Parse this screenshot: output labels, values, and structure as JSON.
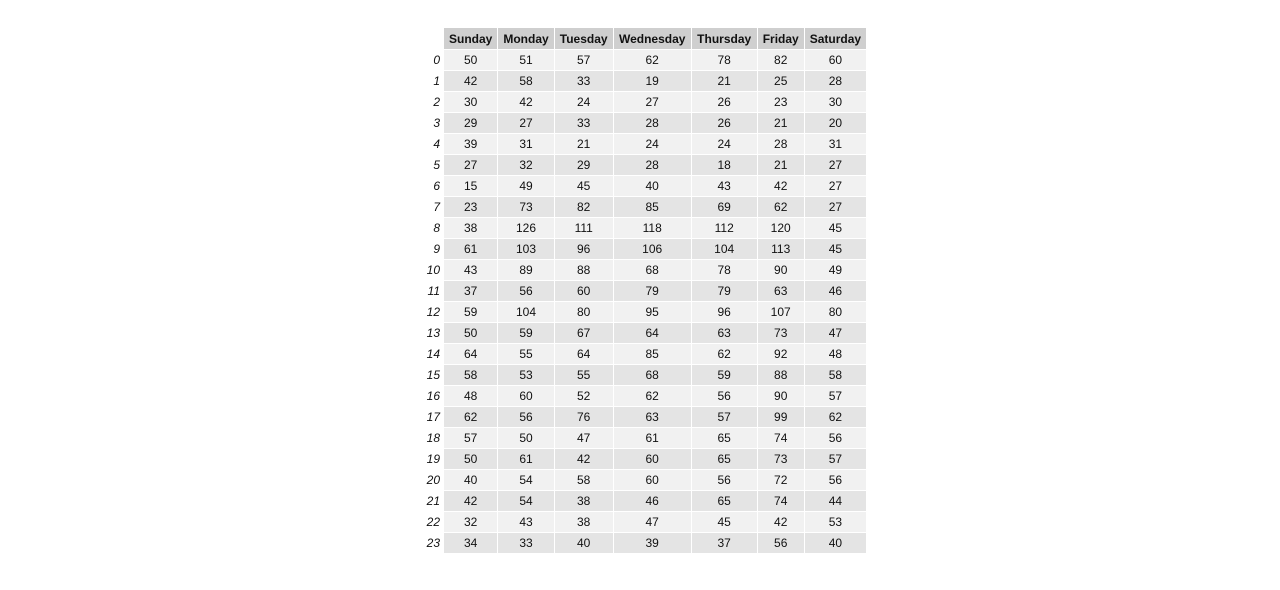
{
  "chart_data": {
    "type": "table",
    "columns": [
      "Sunday",
      "Monday",
      "Tuesday",
      "Wednesday",
      "Thursday",
      "Friday",
      "Saturday"
    ],
    "row_labels": [
      "0",
      "1",
      "2",
      "3",
      "4",
      "5",
      "6",
      "7",
      "8",
      "9",
      "10",
      "11",
      "12",
      "13",
      "14",
      "15",
      "16",
      "17",
      "18",
      "19",
      "20",
      "21",
      "22",
      "23"
    ],
    "rows": [
      [
        50,
        51,
        57,
        62,
        78,
        82,
        60
      ],
      [
        42,
        58,
        33,
        19,
        21,
        25,
        28
      ],
      [
        30,
        42,
        24,
        27,
        26,
        23,
        30
      ],
      [
        29,
        27,
        33,
        28,
        26,
        21,
        20
      ],
      [
        39,
        31,
        21,
        24,
        24,
        28,
        31
      ],
      [
        27,
        32,
        29,
        28,
        18,
        21,
        27
      ],
      [
        15,
        49,
        45,
        40,
        43,
        42,
        27
      ],
      [
        23,
        73,
        82,
        85,
        69,
        62,
        27
      ],
      [
        38,
        126,
        111,
        118,
        112,
        120,
        45
      ],
      [
        61,
        103,
        96,
        106,
        104,
        113,
        45
      ],
      [
        43,
        89,
        88,
        68,
        78,
        90,
        49
      ],
      [
        37,
        56,
        60,
        79,
        79,
        63,
        46
      ],
      [
        59,
        104,
        80,
        95,
        96,
        107,
        80
      ],
      [
        50,
        59,
        67,
        64,
        63,
        73,
        47
      ],
      [
        64,
        55,
        64,
        85,
        62,
        92,
        48
      ],
      [
        58,
        53,
        55,
        68,
        59,
        88,
        58
      ],
      [
        48,
        60,
        52,
        62,
        56,
        90,
        57
      ],
      [
        62,
        56,
        76,
        63,
        57,
        99,
        62
      ],
      [
        57,
        50,
        47,
        61,
        65,
        74,
        56
      ],
      [
        50,
        61,
        42,
        60,
        65,
        73,
        57
      ],
      [
        40,
        54,
        58,
        60,
        56,
        72,
        56
      ],
      [
        42,
        54,
        38,
        46,
        65,
        74,
        44
      ],
      [
        32,
        43,
        38,
        47,
        45,
        42,
        53
      ],
      [
        34,
        33,
        40,
        39,
        37,
        56,
        40
      ]
    ],
    "colors": {
      "header_bg": "#cfcfcf",
      "row_odd_bg": "#f1f1f1",
      "row_even_bg": "#e4e4e4"
    }
  }
}
